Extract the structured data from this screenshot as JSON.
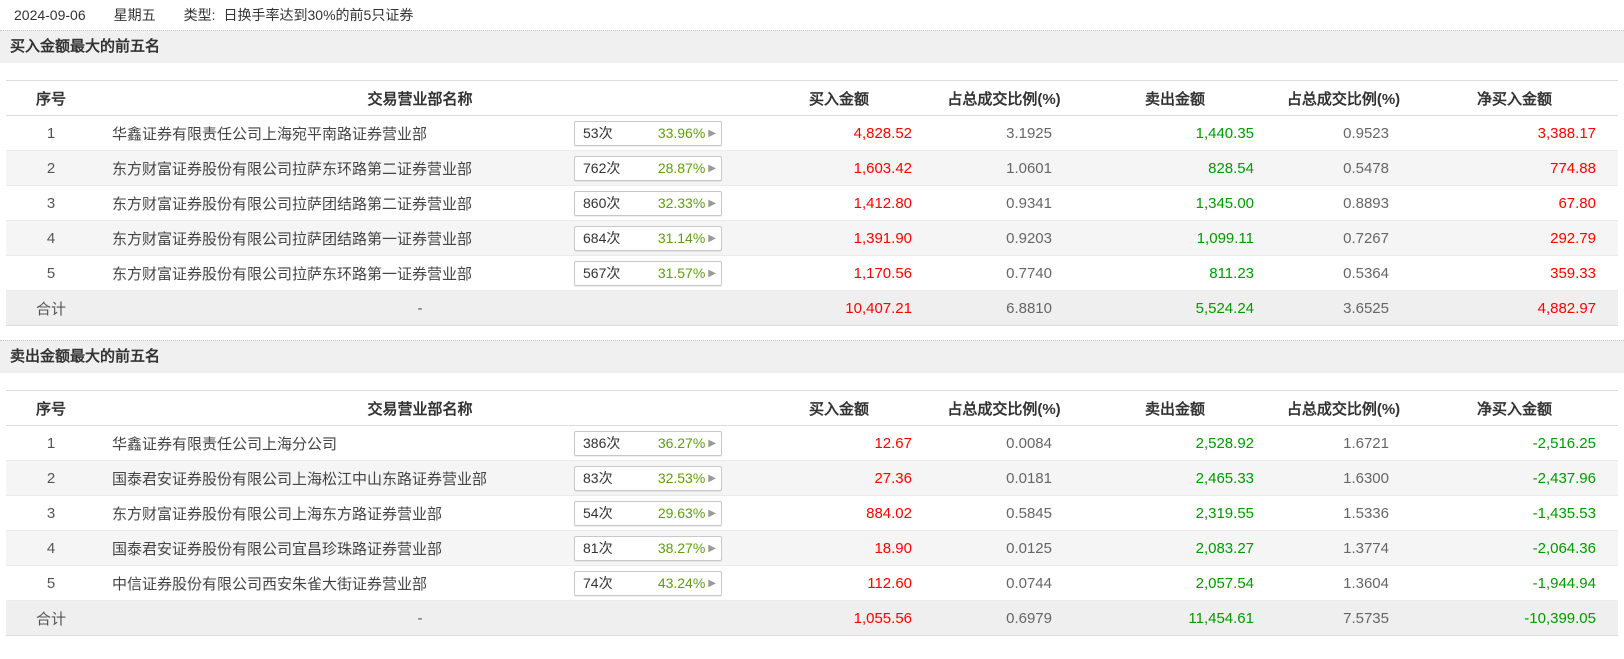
{
  "meta": {
    "date": "2024-09-06",
    "weekday": "星期五",
    "type_label": "类型:",
    "type_value": "日换手率达到30%的前5只证券"
  },
  "colors": {
    "red": "#ff0000",
    "green": "#009900",
    "badge_green": "#5e9e0c",
    "gray_number": "#666666",
    "band_bg": "#f0f0f0"
  },
  "columns": [
    "序号",
    "交易营业部名称",
    "买入金额",
    "占总成交比例(%)",
    "卖出金额",
    "占总成交比例(%)",
    "净买入金额"
  ],
  "icons": {
    "badge_arrow": "▶"
  },
  "buy_section": {
    "title": "买入金额最大的前五名",
    "rows": [
      {
        "no": "1",
        "name": "华鑫证券有限责任公司上海宛平南路证券营业部",
        "count": "53次",
        "pct": "33.96%",
        "buy": "4,828.52",
        "buy_ratio": "3.1925",
        "sell": "1,440.35",
        "sell_ratio": "0.9523",
        "net": "3,388.17",
        "net_sign": "pos"
      },
      {
        "no": "2",
        "name": "东方财富证券股份有限公司拉萨东环路第二证券营业部",
        "count": "762次",
        "pct": "28.87%",
        "buy": "1,603.42",
        "buy_ratio": "1.0601",
        "sell": "828.54",
        "sell_ratio": "0.5478",
        "net": "774.88",
        "net_sign": "pos"
      },
      {
        "no": "3",
        "name": "东方财富证券股份有限公司拉萨团结路第二证券营业部",
        "count": "860次",
        "pct": "32.33%",
        "buy": "1,412.80",
        "buy_ratio": "0.9341",
        "sell": "1,345.00",
        "sell_ratio": "0.8893",
        "net": "67.80",
        "net_sign": "pos"
      },
      {
        "no": "4",
        "name": "东方财富证券股份有限公司拉萨团结路第一证券营业部",
        "count": "684次",
        "pct": "31.14%",
        "buy": "1,391.90",
        "buy_ratio": "0.9203",
        "sell": "1,099.11",
        "sell_ratio": "0.7267",
        "net": "292.79",
        "net_sign": "pos"
      },
      {
        "no": "5",
        "name": "东方财富证券股份有限公司拉萨东环路第一证券营业部",
        "count": "567次",
        "pct": "31.57%",
        "buy": "1,170.56",
        "buy_ratio": "0.7740",
        "sell": "811.23",
        "sell_ratio": "0.5364",
        "net": "359.33",
        "net_sign": "pos"
      }
    ],
    "total": {
      "label": "合计",
      "dash": "-",
      "buy": "10,407.21",
      "buy_ratio": "6.8810",
      "sell": "5,524.24",
      "sell_ratio": "3.6525",
      "net": "4,882.97",
      "net_sign": "pos"
    }
  },
  "sell_section": {
    "title": "卖出金额最大的前五名",
    "rows": [
      {
        "no": "1",
        "name": "华鑫证券有限责任公司上海分公司",
        "count": "386次",
        "pct": "36.27%",
        "buy": "12.67",
        "buy_ratio": "0.0084",
        "sell": "2,528.92",
        "sell_ratio": "1.6721",
        "net": "-2,516.25",
        "net_sign": "neg"
      },
      {
        "no": "2",
        "name": "国泰君安证券股份有限公司上海松江中山东路证券营业部",
        "count": "83次",
        "pct": "32.53%",
        "buy": "27.36",
        "buy_ratio": "0.0181",
        "sell": "2,465.33",
        "sell_ratio": "1.6300",
        "net": "-2,437.96",
        "net_sign": "neg"
      },
      {
        "no": "3",
        "name": "东方财富证券股份有限公司上海东方路证券营业部",
        "count": "54次",
        "pct": "29.63%",
        "buy": "884.02",
        "buy_ratio": "0.5845",
        "sell": "2,319.55",
        "sell_ratio": "1.5336",
        "net": "-1,435.53",
        "net_sign": "neg"
      },
      {
        "no": "4",
        "name": "国泰君安证券股份有限公司宜昌珍珠路证券营业部",
        "count": "81次",
        "pct": "38.27%",
        "buy": "18.90",
        "buy_ratio": "0.0125",
        "sell": "2,083.27",
        "sell_ratio": "1.3774",
        "net": "-2,064.36",
        "net_sign": "neg"
      },
      {
        "no": "5",
        "name": "中信证券股份有限公司西安朱雀大街证券营业部",
        "count": "74次",
        "pct": "43.24%",
        "buy": "112.60",
        "buy_ratio": "0.0744",
        "sell": "2,057.54",
        "sell_ratio": "1.3604",
        "net": "-1,944.94",
        "net_sign": "neg"
      }
    ],
    "total": {
      "label": "合计",
      "dash": "-",
      "buy": "1,055.56",
      "buy_ratio": "0.6979",
      "sell": "11,454.61",
      "sell_ratio": "7.5735",
      "net": "-10,399.05",
      "net_sign": "neg"
    }
  }
}
